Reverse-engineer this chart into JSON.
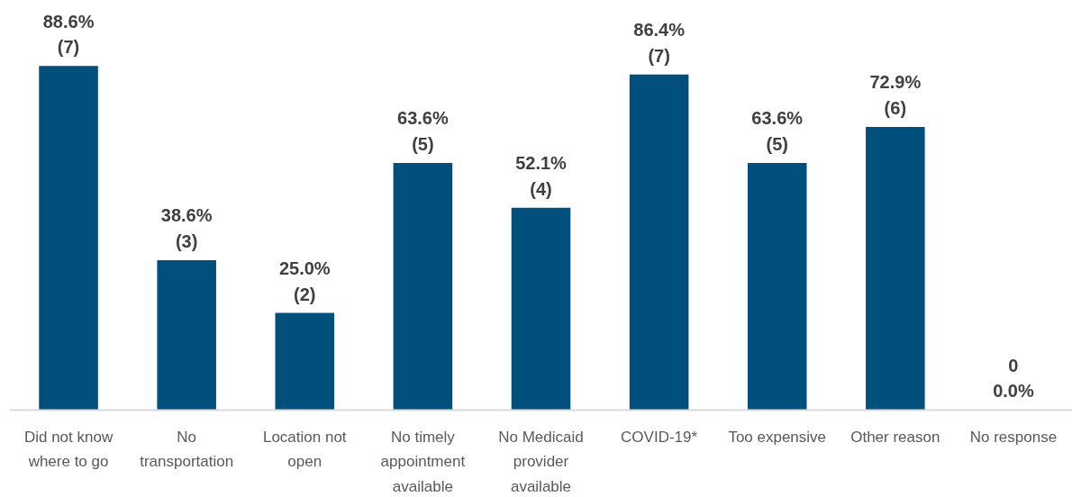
{
  "chart_data": {
    "type": "bar",
    "categories": [
      "Did not know where to go",
      "No transportation",
      "Location not open",
      "No timely appointment available",
      "No Medicaid provider available",
      "COVID-19*",
      "Too expensive",
      "Other reason",
      "No response"
    ],
    "values": [
      88.6,
      38.6,
      25.0,
      63.6,
      52.1,
      86.4,
      63.6,
      72.9,
      0.0
    ],
    "color": "#004f7c",
    "value_labels": [
      "88.6%\n(7)",
      "38.6%\n(3)",
      "25.0%\n(2)",
      "63.6%\n(5)",
      "52.1%\n(4)",
      "86.4%\n(7)",
      "63.6%\n(5)",
      "72.9%\n(6)",
      "0\n0.0%"
    ]
  }
}
